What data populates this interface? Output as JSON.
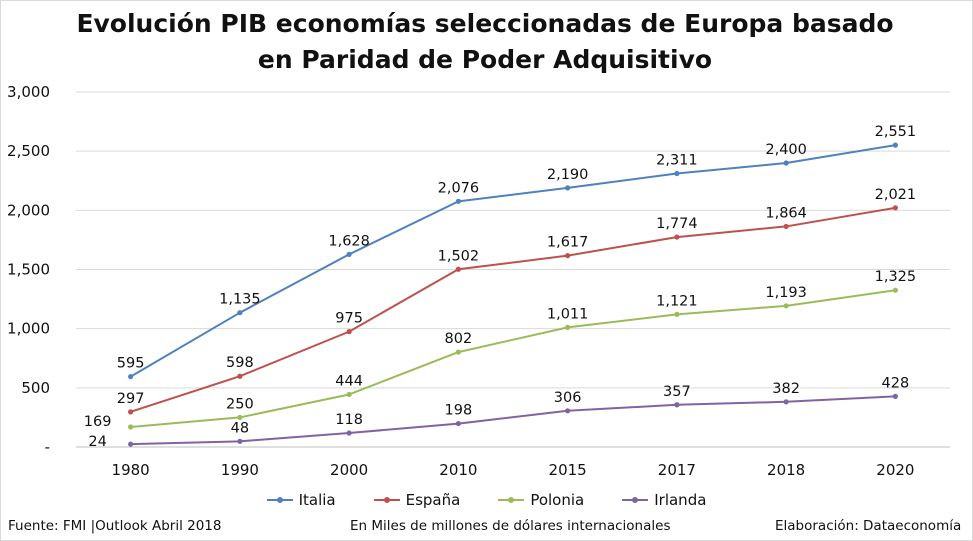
{
  "chart_data": {
    "type": "line",
    "title": "Evolución PIB economías seleccionadas de Europa basado en Paridad de Poder Adquisitivo",
    "categories": [
      "1980",
      "1990",
      "2000",
      "2010",
      "2015",
      "2017",
      "2018",
      "2020"
    ],
    "ylim": [
      0,
      3000
    ],
    "yticks": [
      "-",
      "500",
      "1,000",
      "1,500",
      "2,000",
      "2,500",
      "3,000"
    ],
    "grid": true,
    "legend_position": "bottom",
    "series": [
      {
        "name": "Italia",
        "color": "#4f81bd",
        "values": [
          595,
          1135,
          1628,
          2076,
          2190,
          2311,
          2400,
          2551
        ],
        "labels": [
          "595",
          "1,135",
          "1,628",
          "2,076",
          "2,190",
          "2,311",
          "2,400",
          "2,551"
        ]
      },
      {
        "name": "España",
        "color": "#c0504d",
        "values": [
          297,
          598,
          975,
          1502,
          1617,
          1774,
          1864,
          2021
        ],
        "labels": [
          "297",
          "598",
          "975",
          "1,502",
          "1,617",
          "1,774",
          "1,864",
          "2,021"
        ]
      },
      {
        "name": "Polonia",
        "color": "#9bbb59",
        "values": [
          169,
          250,
          444,
          802,
          1011,
          1121,
          1193,
          1325
        ],
        "labels": [
          "169",
          "250",
          "444",
          "802",
          "1,011",
          "1,121",
          "1,193",
          "1,325"
        ]
      },
      {
        "name": "Irlanda",
        "color": "#8064a2",
        "values": [
          24,
          48,
          118,
          198,
          306,
          357,
          382,
          428
        ],
        "labels": [
          "24",
          "48",
          "118",
          "198",
          "306",
          "357",
          "382",
          "428"
        ]
      }
    ]
  },
  "footer": {
    "source": "Fuente: FMI |Outlook Abril 2018",
    "units": "En Miles de millones de dólares internacionales",
    "credit": "Elaboración: Dataeconomía"
  }
}
